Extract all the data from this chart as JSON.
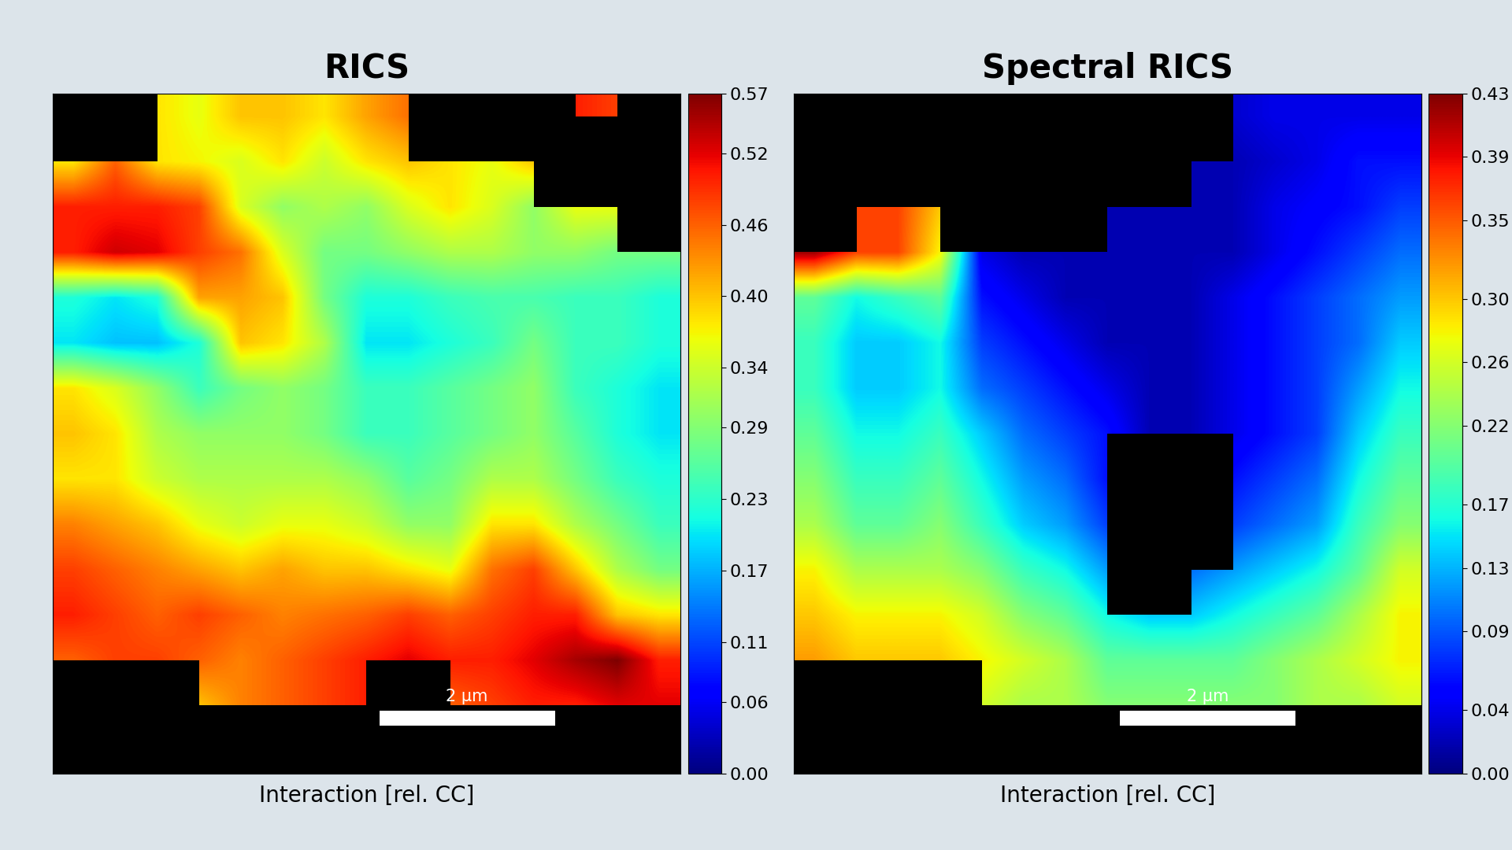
{
  "title1": "RICS",
  "title2": "Spectral RICS",
  "xlabel": "Interaction [rel. CC]",
  "scalebar_text": "2 μm",
  "bg_color": "#dce4ea",
  "colorbar1_ticks": [
    0,
    0.06,
    0.11,
    0.17,
    0.23,
    0.29,
    0.34,
    0.4,
    0.46,
    0.52,
    0.57
  ],
  "colorbar1_max": 0.57,
  "colorbar2_ticks": [
    0,
    0.04,
    0.09,
    0.13,
    0.17,
    0.22,
    0.26,
    0.3,
    0.35,
    0.39,
    0.43
  ],
  "colorbar2_max": 0.43,
  "title_fontsize": 30,
  "label_fontsize": 20,
  "tick_fontsize": 16,
  "rics_data": [
    [
      -1,
      -1,
      0.38,
      0.36,
      0.4,
      0.4,
      0.38,
      0.42,
      0.45,
      -1,
      -1,
      -1,
      0.5,
      0.48,
      -1
    ],
    [
      0.38,
      0.46,
      0.38,
      0.37,
      0.35,
      0.38,
      0.34,
      0.38,
      0.4,
      0.38,
      0.36,
      0.4,
      -1,
      -1,
      -1
    ],
    [
      0.5,
      0.5,
      0.5,
      0.48,
      0.35,
      0.3,
      0.32,
      0.3,
      0.35,
      0.38,
      0.35,
      0.3,
      0.36,
      0.36,
      -1
    ],
    [
      0.5,
      0.53,
      0.52,
      0.48,
      0.45,
      0.35,
      0.28,
      0.28,
      0.3,
      0.32,
      0.32,
      0.3,
      0.3,
      0.28,
      0.28
    ],
    [
      0.22,
      0.2,
      0.22,
      0.42,
      0.42,
      0.4,
      0.28,
      0.22,
      0.22,
      0.24,
      0.25,
      0.25,
      0.24,
      0.24,
      0.22
    ],
    [
      0.2,
      0.18,
      0.18,
      0.22,
      0.4,
      0.38,
      0.32,
      0.2,
      0.2,
      0.22,
      0.24,
      0.28,
      0.24,
      0.24,
      0.22
    ],
    [
      0.38,
      0.35,
      0.3,
      0.24,
      0.28,
      0.3,
      0.28,
      0.24,
      0.24,
      0.26,
      0.28,
      0.3,
      0.24,
      0.22,
      0.2
    ],
    [
      0.4,
      0.38,
      0.32,
      0.3,
      0.3,
      0.3,
      0.28,
      0.24,
      0.24,
      0.26,
      0.28,
      0.3,
      0.26,
      0.22,
      0.2
    ],
    [
      0.38,
      0.38,
      0.34,
      0.32,
      0.32,
      0.32,
      0.32,
      0.3,
      0.26,
      0.28,
      0.32,
      0.32,
      0.28,
      0.24,
      0.22
    ],
    [
      0.44,
      0.42,
      0.4,
      0.36,
      0.34,
      0.36,
      0.36,
      0.34,
      0.3,
      0.3,
      0.38,
      0.38,
      0.32,
      0.28,
      0.24
    ],
    [
      0.48,
      0.46,
      0.44,
      0.42,
      0.4,
      0.42,
      0.4,
      0.4,
      0.38,
      0.36,
      0.45,
      0.48,
      0.4,
      0.32,
      0.28
    ],
    [
      0.5,
      0.48,
      0.46,
      0.48,
      0.46,
      0.44,
      0.45,
      0.46,
      0.48,
      0.46,
      0.48,
      0.5,
      0.5,
      0.4,
      0.38
    ],
    [
      0.46,
      0.48,
      0.48,
      0.46,
      0.44,
      0.46,
      0.48,
      0.5,
      0.52,
      0.5,
      0.5,
      0.52,
      0.55,
      0.57,
      0.5
    ],
    [
      -1,
      -1,
      -1,
      0.4,
      0.44,
      0.46,
      0.48,
      0.5,
      -1,
      0.46,
      0.48,
      0.5,
      0.5,
      0.52,
      0.52
    ],
    [
      -1,
      -1,
      -1,
      -1,
      -1,
      -1,
      -1,
      -1,
      -1,
      -1,
      -1,
      -1,
      -1,
      -1,
      -1
    ]
  ],
  "srics_data": [
    [
      -1,
      -1,
      -1,
      -1,
      -1,
      -1,
      -1,
      -1,
      -1,
      -1,
      0.03,
      0.04,
      0.04,
      0.04,
      0.04
    ],
    [
      -1,
      -1,
      -1,
      -1,
      -1,
      -1,
      -1,
      -1,
      -1,
      0.02,
      0.02,
      0.03,
      0.04,
      0.06,
      0.06
    ],
    [
      -1,
      0.36,
      0.36,
      0.3,
      -1,
      -1,
      -1,
      0.02,
      0.02,
      0.02,
      0.02,
      0.04,
      0.05,
      0.06,
      0.08
    ],
    [
      0.42,
      0.36,
      0.36,
      0.28,
      0.04,
      0.02,
      0.02,
      0.02,
      0.02,
      0.02,
      0.02,
      0.04,
      0.06,
      0.08,
      0.1
    ],
    [
      0.2,
      0.16,
      0.18,
      0.2,
      0.06,
      0.04,
      0.02,
      0.02,
      0.02,
      0.02,
      0.04,
      0.06,
      0.08,
      0.1,
      0.12
    ],
    [
      0.18,
      0.14,
      0.14,
      0.16,
      0.08,
      0.06,
      0.04,
      0.02,
      0.02,
      0.02,
      0.04,
      0.06,
      0.08,
      0.1,
      0.14
    ],
    [
      0.18,
      0.14,
      0.14,
      0.16,
      0.1,
      0.08,
      0.06,
      0.04,
      0.02,
      0.02,
      0.04,
      0.06,
      0.08,
      0.12,
      0.16
    ],
    [
      0.2,
      0.16,
      0.16,
      0.18,
      0.14,
      0.1,
      0.08,
      0.06,
      0.02,
      0.02,
      0.04,
      0.06,
      0.08,
      0.14,
      0.18
    ],
    [
      0.22,
      0.18,
      0.18,
      0.2,
      0.16,
      0.12,
      0.1,
      0.06,
      -1,
      -1,
      0.06,
      0.08,
      0.1,
      0.16,
      0.2
    ],
    [
      0.24,
      0.2,
      0.2,
      0.22,
      0.18,
      0.14,
      0.12,
      0.08,
      -1,
      -1,
      0.08,
      0.1,
      0.12,
      0.18,
      0.22
    ],
    [
      0.28,
      0.24,
      0.24,
      0.24,
      0.22,
      0.18,
      0.16,
      0.12,
      -1,
      0.1,
      0.12,
      0.14,
      0.16,
      0.2,
      0.26
    ],
    [
      0.3,
      0.28,
      0.28,
      0.28,
      0.26,
      0.22,
      0.2,
      0.16,
      0.14,
      0.14,
      0.16,
      0.18,
      0.2,
      0.24,
      0.28
    ],
    [
      0.32,
      0.3,
      0.3,
      0.3,
      0.28,
      0.26,
      0.24,
      0.2,
      0.2,
      0.2,
      0.2,
      0.22,
      0.24,
      0.26,
      0.28
    ],
    [
      -1,
      -1,
      -1,
      -1,
      0.26,
      0.24,
      0.24,
      0.22,
      0.22,
      0.22,
      0.22,
      0.22,
      0.24,
      0.24,
      0.26
    ],
    [
      -1,
      -1,
      -1,
      -1,
      -1,
      -1,
      -1,
      -1,
      -1,
      -1,
      -1,
      -1,
      -1,
      -1,
      -1
    ]
  ]
}
